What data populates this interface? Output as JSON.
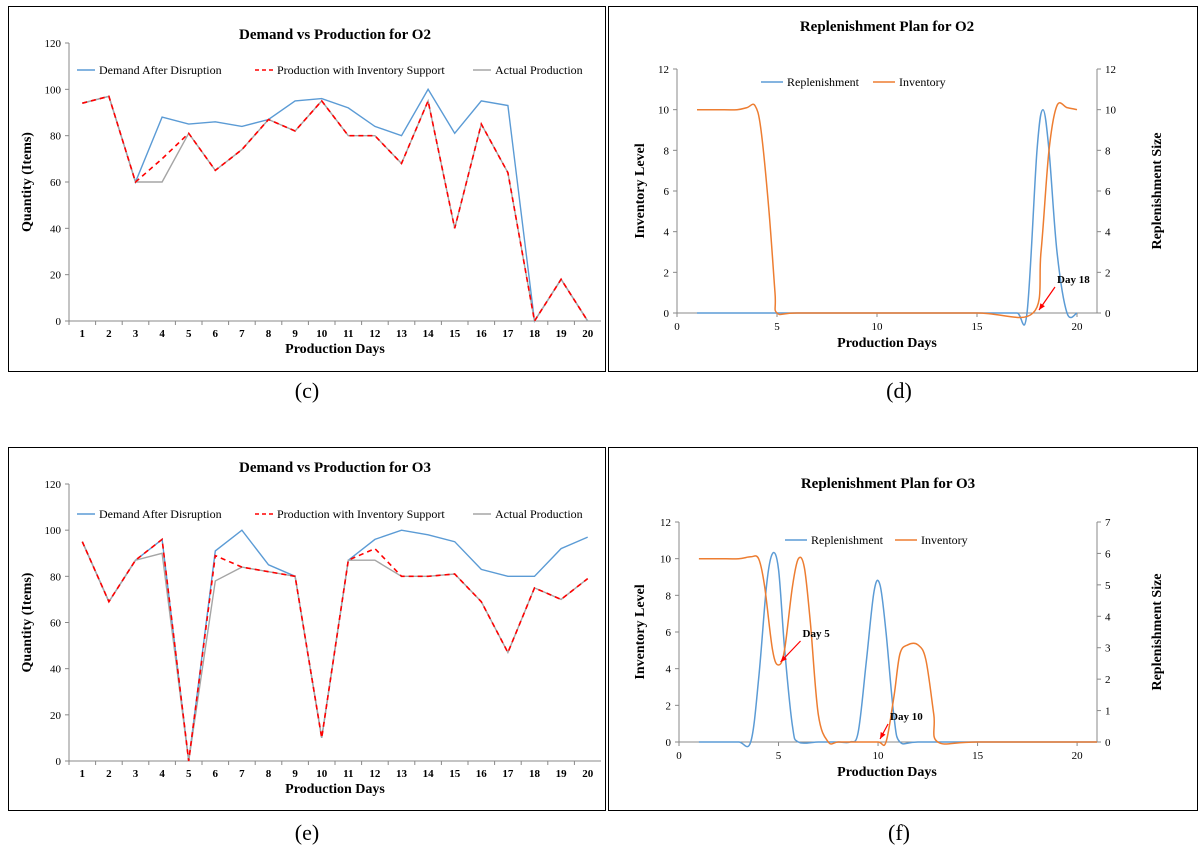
{
  "captions": [
    "(c)",
    "(d)",
    "(e)",
    "(f)"
  ],
  "colors": {
    "blue": "#5b9bd5",
    "orange": "#ed7d31",
    "red": "#ff0000",
    "gray": "#a5a5a5",
    "darkred": "#c0504d"
  },
  "chart_data": [
    {
      "type": "line",
      "title": "Demand vs Production for O2",
      "xlabel": "Production Days",
      "ylabel": "Quantity (Items)",
      "x": [
        1,
        2,
        3,
        4,
        5,
        6,
        7,
        8,
        9,
        10,
        11,
        12,
        13,
        14,
        15,
        16,
        17,
        18,
        19,
        20
      ],
      "ylim": [
        0,
        120
      ],
      "yticks": [
        0,
        20,
        40,
        60,
        80,
        100,
        120
      ],
      "legend": "top",
      "series": [
        {
          "name": "Demand After Disruption",
          "color": "#5b9bd5",
          "dash": "",
          "values": [
            94,
            97,
            60,
            88,
            85,
            86,
            84,
            87,
            95,
            96,
            92,
            84,
            80,
            100,
            81,
            95,
            93,
            0,
            18,
            0
          ]
        },
        {
          "name": "Production with Inventory Support",
          "color": "#ff0000",
          "dash": "5,4",
          "values": [
            94,
            97,
            60,
            70,
            81,
            65,
            74,
            87,
            82,
            95,
            80,
            80,
            68,
            95,
            40,
            85,
            64,
            0,
            18,
            0
          ]
        },
        {
          "name": "Actual Production",
          "color": "#a5a5a5",
          "dash": "",
          "values": [
            94,
            97,
            60,
            60,
            81,
            65,
            74,
            87,
            82,
            95,
            80,
            80,
            68,
            95,
            40,
            85,
            64,
            0,
            18,
            0
          ]
        }
      ]
    },
    {
      "type": "line",
      "title": "Replenishment Plan for O2",
      "xlabel": "Production Days",
      "ylabel": "Inventory Level",
      "y2label": "Replenishment Size",
      "xlim": [
        0,
        21
      ],
      "xticks": [
        0,
        5,
        10,
        15,
        20
      ],
      "ylim": [
        0,
        12
      ],
      "y2lim": [
        0,
        12
      ],
      "yticks": [
        0,
        2,
        4,
        6,
        8,
        10,
        12
      ],
      "y2ticks": [
        0,
        2,
        4,
        6,
        8,
        10,
        12
      ],
      "legend": "top",
      "series": [
        {
          "name": "Replenishment",
          "color": "#5b9bd5",
          "axis": "y2",
          "x": [
            1,
            2,
            3,
            4,
            5,
            6,
            7,
            8,
            9,
            10,
            11,
            12,
            13,
            14,
            15,
            16,
            17,
            17.5,
            18,
            18.3,
            18.6,
            19,
            19.5,
            20
          ],
          "values": [
            0,
            0,
            0,
            0,
            0,
            0,
            0,
            0,
            0,
            0,
            0,
            0,
            0,
            0,
            0,
            0,
            0,
            0,
            8,
            10,
            8,
            3,
            0,
            0
          ]
        },
        {
          "name": "Inventory",
          "color": "#ed7d31",
          "axis": "y",
          "x": [
            1,
            2,
            3,
            3.5,
            3.9,
            4.2,
            4.6,
            4.9,
            5,
            6,
            10,
            15,
            17.8,
            18.2,
            18.6,
            19,
            19.5,
            20
          ],
          "values": [
            10,
            10,
            10,
            10.1,
            10.2,
            9,
            5,
            1,
            0,
            0,
            0,
            0,
            0,
            3,
            8,
            10.2,
            10.1,
            10
          ]
        }
      ],
      "annotations": [
        {
          "text": "Day 18",
          "x": 18,
          "y": 0
        }
      ]
    },
    {
      "type": "line",
      "title": "Demand vs Production for O3",
      "xlabel": "Production Days",
      "ylabel": "Quantity (Items)",
      "x": [
        1,
        2,
        3,
        4,
        5,
        6,
        7,
        8,
        9,
        10,
        11,
        12,
        13,
        14,
        15,
        16,
        17,
        18,
        19,
        20
      ],
      "ylim": [
        0,
        120
      ],
      "yticks": [
        0,
        20,
        40,
        60,
        80,
        100,
        120
      ],
      "legend": "top",
      "series": [
        {
          "name": "Demand After Disruption",
          "color": "#5b9bd5",
          "dash": "",
          "values": [
            95,
            69,
            87,
            96,
            0,
            91,
            100,
            85,
            80,
            10,
            87,
            96,
            100,
            98,
            95,
            83,
            80,
            80,
            92,
            97
          ]
        },
        {
          "name": "Production with Inventory Support",
          "color": "#ff0000",
          "dash": "5,4",
          "values": [
            95,
            69,
            87,
            96,
            0,
            89,
            84,
            82,
            80,
            10,
            87,
            92,
            80,
            80,
            81,
            69,
            47,
            75,
            70,
            79
          ]
        },
        {
          "name": "Actual Production",
          "color": "#a5a5a5",
          "dash": "",
          "values": [
            95,
            69,
            87,
            90,
            0,
            78,
            84,
            82,
            80,
            10,
            87,
            87,
            80,
            80,
            81,
            69,
            47,
            75,
            70,
            79
          ]
        }
      ]
    },
    {
      "type": "line",
      "title": "Replenishment Plan for O3",
      "xlabel": "Production Days",
      "ylabel": "Inventory Level",
      "y2label": "Replenishment Size",
      "xlim": [
        0,
        21
      ],
      "xticks": [
        0,
        5,
        10,
        15,
        20
      ],
      "ylim": [
        0,
        12
      ],
      "y2lim": [
        0,
        7
      ],
      "yticks": [
        0,
        2,
        4,
        6,
        8,
        10,
        12
      ],
      "y2ticks": [
        0,
        1,
        2,
        3,
        4,
        5,
        6,
        7
      ],
      "legend": "top",
      "series": [
        {
          "name": "Replenishment",
          "color": "#5b9bd5",
          "axis": "y2",
          "x": [
            1,
            2,
            3,
            3.6,
            4,
            4.4,
            4.7,
            5,
            5.3,
            5.7,
            6,
            7,
            8,
            8.6,
            9,
            9.4,
            9.8,
            10.1,
            10.4,
            10.8,
            11.1,
            12,
            15,
            21
          ],
          "values": [
            0,
            0,
            0,
            0,
            2,
            5,
            6,
            5.5,
            3,
            0.5,
            0,
            0,
            0,
            0,
            0.3,
            2.5,
            4.8,
            5,
            3.5,
            0.8,
            0,
            0,
            0,
            0
          ]
        },
        {
          "name": "Inventory",
          "color": "#ed7d31",
          "axis": "y",
          "x": [
            1,
            2,
            3,
            3.6,
            4,
            4.3,
            4.7,
            5,
            5.3,
            5.7,
            6,
            6.3,
            6.6,
            7,
            7.5,
            8,
            9,
            10,
            10.4,
            10.8,
            11.1,
            11.5,
            12,
            12.4,
            12.8,
            13,
            15,
            21
          ],
          "values": [
            10,
            10,
            10,
            10.1,
            10,
            8.5,
            5,
            4.2,
            5,
            8.5,
            10,
            9.5,
            6.5,
            1.5,
            0,
            0,
            0,
            0,
            0,
            2.5,
            4.8,
            5.3,
            5.3,
            4.5,
            1.5,
            0,
            0,
            0
          ]
        }
      ],
      "annotations": [
        {
          "text": "Day 5",
          "x": 5,
          "y": 4.2
        },
        {
          "text": "Day 10",
          "x": 10,
          "y": 0
        }
      ]
    }
  ]
}
